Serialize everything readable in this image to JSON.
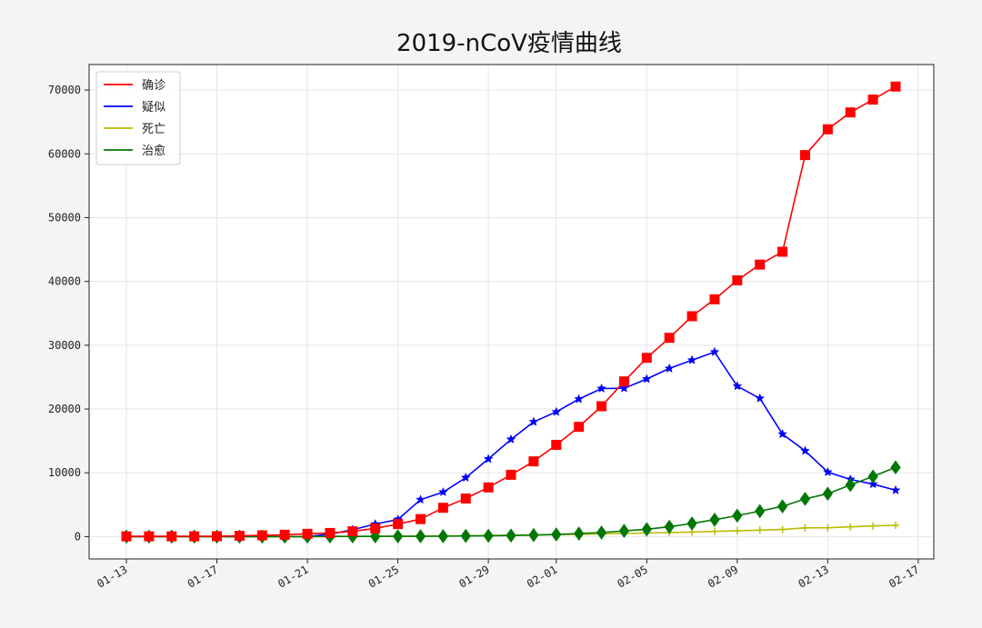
{
  "chart_data": {
    "type": "line",
    "title": "2019-nCoV疫情曲线",
    "xlabel": "",
    "ylabel": "",
    "x_start": "01-13",
    "x_end": "02-16",
    "x": [
      "01-13",
      "01-14",
      "01-15",
      "01-16",
      "01-17",
      "01-18",
      "01-19",
      "01-20",
      "01-21",
      "01-22",
      "01-23",
      "01-24",
      "01-25",
      "01-26",
      "01-27",
      "01-28",
      "01-29",
      "01-30",
      "01-31",
      "02-01",
      "02-02",
      "02-03",
      "02-04",
      "02-05",
      "02-06",
      "02-07",
      "02-08",
      "02-09",
      "02-10",
      "02-11",
      "02-12",
      "02-13",
      "02-14",
      "02-15",
      "02-16"
    ],
    "xlim": [
      "01-13",
      "02-17"
    ],
    "ylim": [
      -3500,
      74000
    ],
    "x_tick_labels": [
      "01-13",
      "01-17",
      "01-21",
      "01-25",
      "01-29",
      "02-01",
      "02-05",
      "02-09",
      "02-13",
      "02-17"
    ],
    "y_ticks": [
      0,
      10000,
      20000,
      30000,
      40000,
      50000,
      60000,
      70000
    ],
    "grid": true,
    "legend_position": "top-left",
    "series": [
      {
        "name": "确诊",
        "color": "#ff0000",
        "marker": "square",
        "values": [
          41,
          41,
          41,
          45,
          62,
          121,
          198,
          291,
          440,
          571,
          830,
          1287,
          1975,
          2744,
          4515,
          5974,
          7711,
          9692,
          11791,
          14380,
          17205,
          20438,
          24324,
          28018,
          31161,
          34546,
          37198,
          40171,
          42638,
          44653,
          59804,
          63851,
          66492,
          68500,
          70548
        ]
      },
      {
        "name": "疑似",
        "color": "#0000ff",
        "marker": "star",
        "values": [
          0,
          0,
          0,
          0,
          0,
          0,
          0,
          0,
          0,
          393,
          1072,
          1965,
          2684,
          5794,
          6973,
          9239,
          12167,
          15238,
          17988,
          19544,
          21558,
          23214,
          23260,
          24702,
          26359,
          27657,
          28942,
          23589,
          21675,
          16067,
          13435,
          10109,
          8969,
          8228,
          7264
        ]
      },
      {
        "name": "死亡",
        "color": "#bbbb00",
        "marker": "plus",
        "values": [
          1,
          1,
          1,
          2,
          2,
          3,
          4,
          6,
          9,
          17,
          25,
          41,
          56,
          80,
          106,
          132,
          170,
          213,
          259,
          304,
          361,
          425,
          490,
          563,
          636,
          722,
          811,
          908,
          1016,
          1113,
          1367,
          1380,
          1523,
          1665,
          1770
        ]
      },
      {
        "name": "治愈",
        "color": "#007700",
        "marker": "diamond",
        "values": [
          0,
          0,
          0,
          0,
          0,
          0,
          0,
          0,
          0,
          28,
          34,
          38,
          49,
          51,
          60,
          103,
          124,
          171,
          243,
          328,
          475,
          632,
          892,
          1153,
          1540,
          2050,
          2649,
          3281,
          3996,
          4740,
          5911,
          6723,
          8096,
          9419,
          10844
        ]
      }
    ]
  }
}
